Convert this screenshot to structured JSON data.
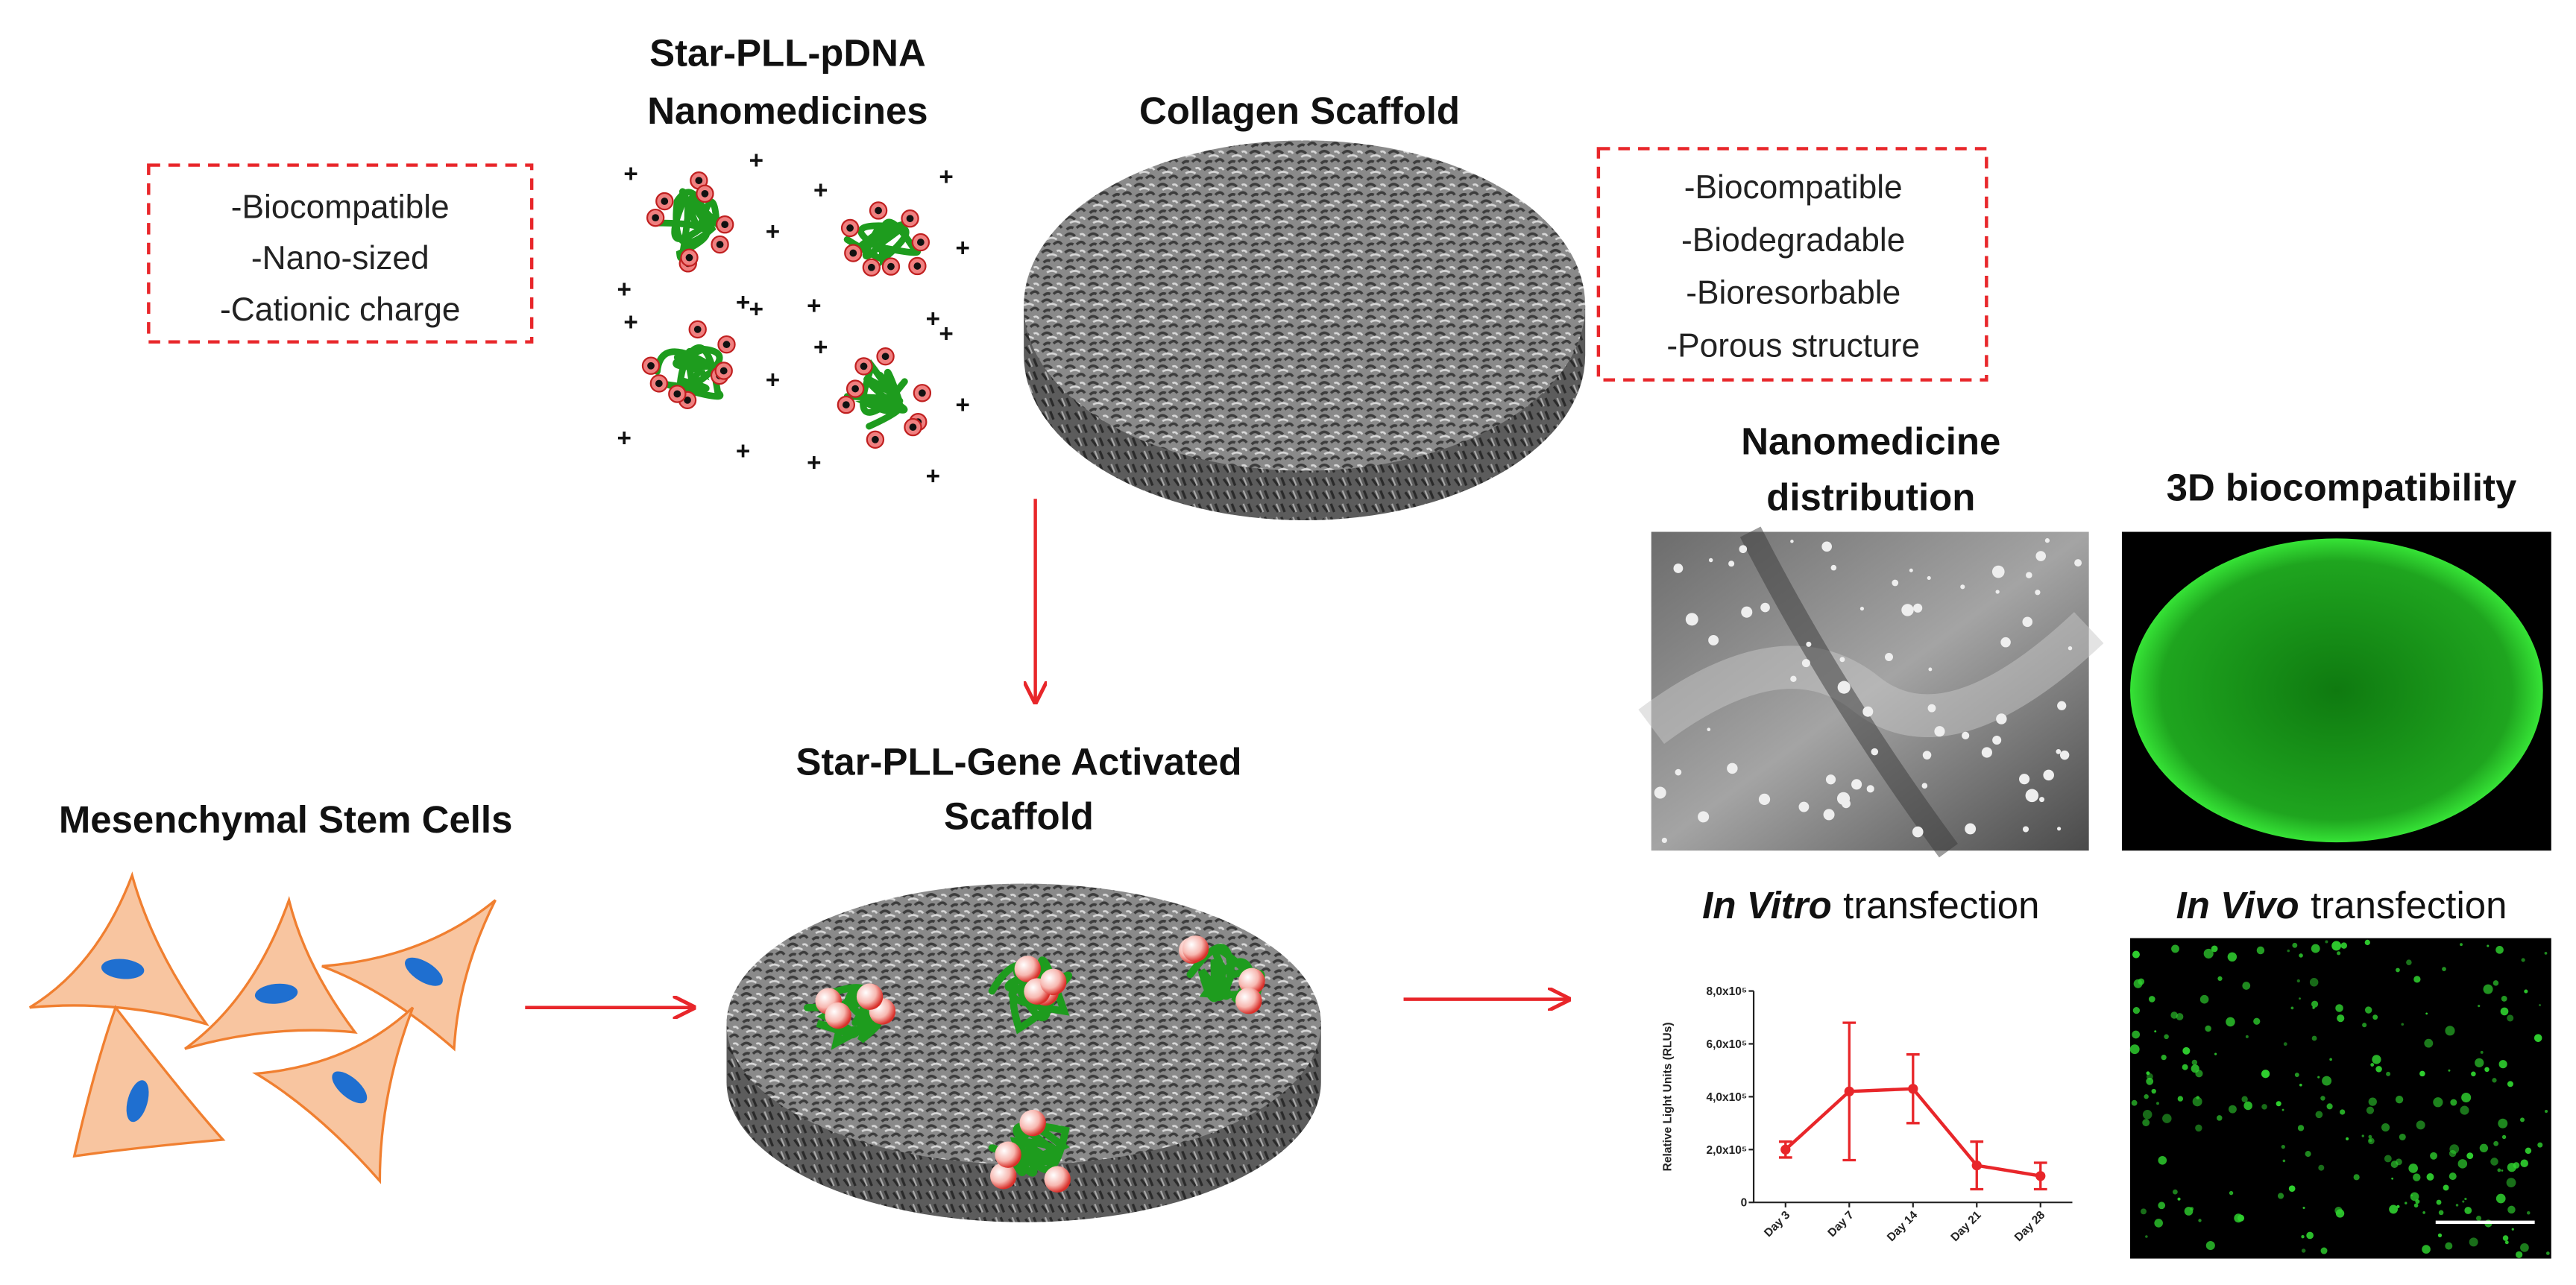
{
  "nanomedicine": {
    "title": [
      "Star-PLL-pDNA",
      "Nanomedicines"
    ],
    "charge": "+"
  },
  "nanomedicine_properties": [
    "-Biocompatible",
    "-Nano-sized",
    "-Cationic charge"
  ],
  "scaffold": {
    "title": "Collagen Scaffold"
  },
  "scaffold_properties": [
    "-Biocompatible",
    "-Biodegradable",
    "-Bioresorbable",
    "-Porous structure"
  ],
  "gene_activated_scaffold": {
    "title": [
      "Star-PLL-Gene Activated",
      "Scaffold"
    ]
  },
  "stem_cells": {
    "title": "Mesenchymal Stem Cells"
  },
  "results": {
    "distribution": {
      "title": [
        "Nanomedicine",
        "distribution"
      ]
    },
    "biocompatibility": {
      "title": "3D biocompatibility"
    },
    "in_vitro": {
      "title_italic": "In Vitro",
      "title_rest": "transfection"
    },
    "in_vivo": {
      "title_italic": "In Vivo",
      "title_rest": "transfection"
    }
  },
  "chart_data": {
    "type": "line",
    "y_label": "Relative Light Units (RLUs)",
    "categories": [
      "Day 3",
      "Day 7",
      "Day 14",
      "Day 21",
      "Day 28"
    ],
    "series": [
      {
        "color": "#e8262a",
        "values": [
          200000,
          420000,
          430000,
          140000,
          100000
        ],
        "errors": [
          30000,
          260000,
          130000,
          90000,
          50000
        ]
      }
    ],
    "ylim": [
      0,
      800000
    ],
    "yticks": [
      0,
      {
        "value": 200000,
        "label": "2,0x10⁵"
      },
      {
        "value": 400000,
        "label": "4,0x10⁵"
      },
      {
        "value": 600000,
        "label": "6,0x10⁵"
      },
      {
        "value": 800000,
        "label": "8,0x10⁵"
      }
    ]
  }
}
